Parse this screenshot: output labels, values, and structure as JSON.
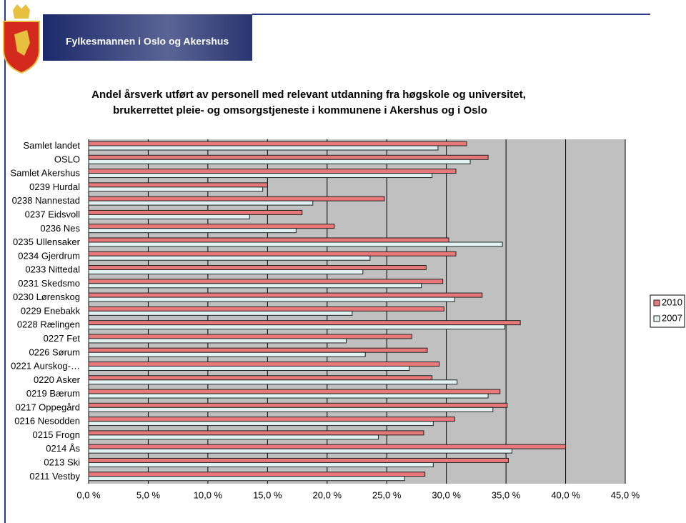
{
  "header": {
    "title": "Fylkesmannen i Oslo og Akershus"
  },
  "chart_data": {
    "type": "hbar",
    "title": "Andel årsverk utført av personell med relevant utdanning fra høgskole og universitet,",
    "subtitle": "brukerrettet pleie- og omsorgstjeneste i kommunene i Akershus og i Oslo",
    "categories": [
      "Samlet landet",
      "OSLO",
      "Samlet Akershus",
      "0239 Hurdal",
      "0238 Nannestad",
      "0237 Eidsvoll",
      "0236 Nes",
      "0235 Ullensaker",
      "0234 Gjerdrum",
      "0233 Nittedal",
      "0231 Skedsmo",
      "0230 Lørenskog",
      "0229 Enebakk",
      "0228 Rælingen",
      "0227 Fet",
      "0226 Sørum",
      "0221 Aurskog-…",
      "0220 Asker",
      "0219 Bærum",
      "0217 Oppegård",
      "0216 Nesodden",
      "0215 Frogn",
      "0214 Ås",
      "0213 Ski",
      "0211 Vestby"
    ],
    "series": [
      {
        "name": "2010",
        "color": "#e8787a",
        "values": [
          31.7,
          33.5,
          30.8,
          15.0,
          24.8,
          17.9,
          20.6,
          30.2,
          30.8,
          28.3,
          29.7,
          33.0,
          29.8,
          36.2,
          27.1,
          28.4,
          29.4,
          28.8,
          34.5,
          35.1,
          30.7,
          28.1,
          40.0,
          35.2,
          28.2
        ]
      },
      {
        "name": "2007",
        "color": "#e0f2f2",
        "values": [
          29.3,
          32.0,
          28.8,
          14.6,
          18.8,
          13.5,
          17.4,
          34.7,
          23.6,
          23.0,
          27.9,
          30.7,
          22.1,
          34.9,
          21.6,
          23.2,
          26.9,
          30.9,
          33.5,
          33.9,
          28.9,
          24.3,
          35.5,
          28.9,
          26.5
        ]
      }
    ],
    "xlim": [
      0,
      45
    ],
    "xticks": [
      {
        "value": 0,
        "label": "0,0 %"
      },
      {
        "value": 5,
        "label": "5,0 %"
      },
      {
        "value": 10,
        "label": "10,0 %"
      },
      {
        "value": 15,
        "label": "15,0 %"
      },
      {
        "value": 20,
        "label": "20,0 %"
      },
      {
        "value": 25,
        "label": "25,0 %"
      },
      {
        "value": 30,
        "label": "30,0 %"
      },
      {
        "value": 35,
        "label": "35,0 %"
      },
      {
        "value": 40,
        "label": "40,0 %"
      },
      {
        "value": 45,
        "label": "45,0 %"
      }
    ],
    "grid": true,
    "background": "#c0c0c0",
    "legend": "right"
  }
}
